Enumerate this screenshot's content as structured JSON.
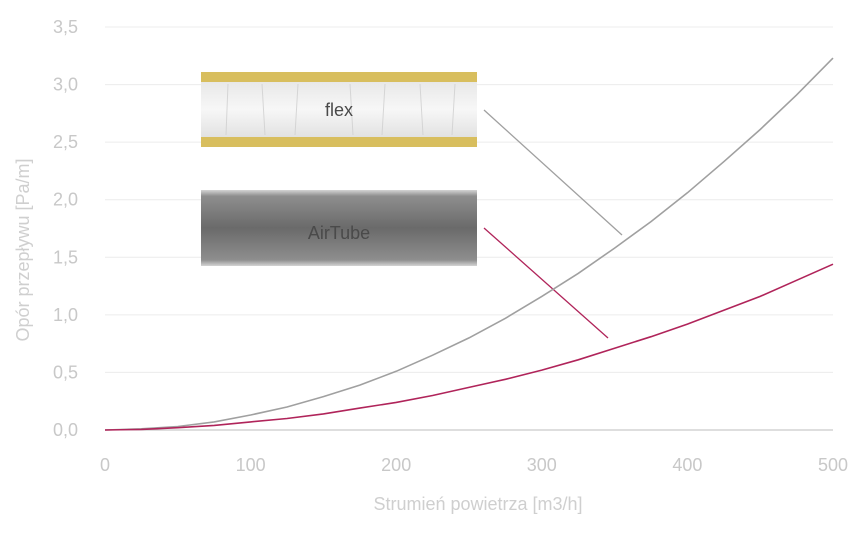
{
  "chart_data": {
    "type": "line",
    "title": "",
    "xlabel": "Strumień powietrza [m3/h]",
    "ylabel": "Opór przepływu [Pa/m]",
    "xlim": [
      0,
      500
    ],
    "ylim": [
      0,
      3.5
    ],
    "x_ticks": [
      "0",
      "100",
      "200",
      "300",
      "400",
      "500"
    ],
    "y_ticks": [
      "0,0",
      "0,5",
      "1,0",
      "1,5",
      "2,0",
      "2,5",
      "3,0",
      "3,5"
    ],
    "grid": true,
    "series": [
      {
        "name": "flex",
        "color": "#a0a0a0",
        "x": [
          0,
          25,
          50,
          75,
          100,
          125,
          150,
          175,
          200,
          225,
          250,
          275,
          300,
          325,
          350,
          375,
          400,
          425,
          450,
          475,
          500
        ],
        "y": [
          0.0,
          0.01,
          0.03,
          0.07,
          0.13,
          0.2,
          0.29,
          0.39,
          0.51,
          0.65,
          0.8,
          0.97,
          1.16,
          1.36,
          1.58,
          1.81,
          2.06,
          2.33,
          2.61,
          2.91,
          3.23
        ]
      },
      {
        "name": "AirTube",
        "color": "#b0245a",
        "x": [
          0,
          25,
          50,
          75,
          100,
          125,
          150,
          175,
          200,
          225,
          250,
          275,
          300,
          325,
          350,
          375,
          400,
          425,
          450,
          475,
          500
        ],
        "y": [
          0.0,
          0.005,
          0.02,
          0.04,
          0.07,
          0.1,
          0.14,
          0.19,
          0.24,
          0.3,
          0.37,
          0.44,
          0.52,
          0.61,
          0.71,
          0.81,
          0.92,
          1.04,
          1.16,
          1.3,
          1.44
        ]
      }
    ]
  }
}
